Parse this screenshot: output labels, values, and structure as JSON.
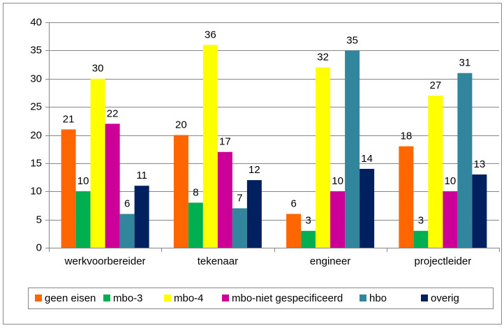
{
  "chart_data": {
    "type": "bar",
    "categories": [
      "werkvoorbereider",
      "tekenaar",
      "engineer",
      "projectleider"
    ],
    "series": [
      {
        "name": "geen eisen",
        "color": "#ff6600",
        "values": [
          21,
          20,
          6,
          18
        ]
      },
      {
        "name": "mbo-3",
        "color": "#00b050",
        "values": [
          10,
          8,
          3,
          3
        ]
      },
      {
        "name": "mbo-4",
        "color": "#ffff00",
        "values": [
          30,
          36,
          32,
          27
        ]
      },
      {
        "name": "mbo-niet gespecificeerd",
        "color": "#cc0099",
        "values": [
          22,
          17,
          10,
          10
        ]
      },
      {
        "name": "hbo",
        "color": "#31859c",
        "values": [
          6,
          7,
          35,
          31
        ]
      },
      {
        "name": "overig",
        "color": "#002060",
        "values": [
          11,
          12,
          14,
          13
        ]
      }
    ],
    "ylim": [
      0,
      40
    ],
    "yticks": [
      0,
      5,
      10,
      15,
      20,
      25,
      30,
      35,
      40
    ],
    "grid": true,
    "legend": "bottom"
  }
}
